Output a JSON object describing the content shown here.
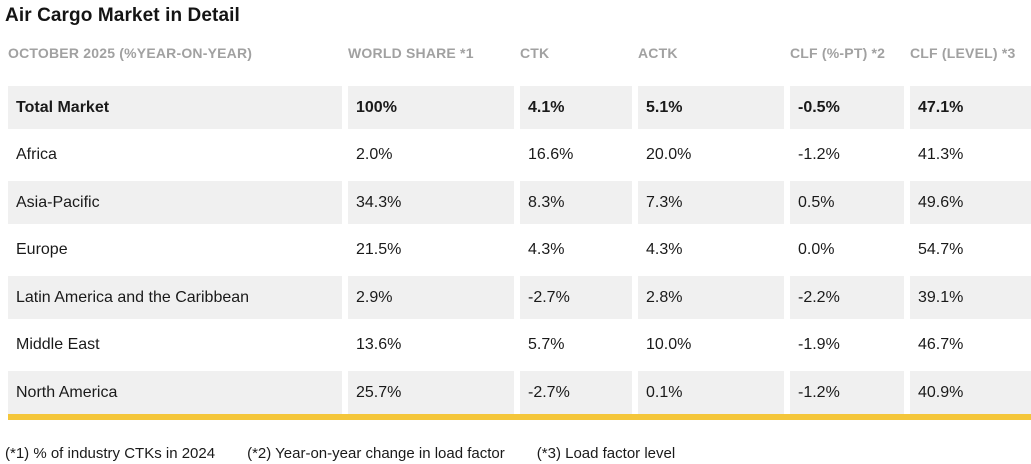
{
  "title": "Air Cargo Market in Detail",
  "table": {
    "columns": [
      "OCTOBER 2025 (%YEAR-ON-YEAR)",
      "WORLD SHARE *1",
      "CTK",
      "ACTK",
      "CLF (%-PT) *2",
      "CLF (LEVEL) *3"
    ],
    "rows": [
      {
        "cells": [
          "Total Market",
          "100%",
          "4.1%",
          "5.1%",
          "-0.5%",
          "47.1%"
        ]
      },
      {
        "cells": [
          "Africa",
          "2.0%",
          "16.6%",
          "20.0%",
          "-1.2%",
          "41.3%"
        ]
      },
      {
        "cells": [
          "Asia-Pacific",
          "34.3%",
          "8.3%",
          "7.3%",
          "0.5%",
          "49.6%"
        ]
      },
      {
        "cells": [
          "Europe",
          "21.5%",
          "4.3%",
          "4.3%",
          "0.0%",
          "54.7%"
        ]
      },
      {
        "cells": [
          "Latin America and the Caribbean",
          "2.9%",
          "-2.7%",
          "2.8%",
          "-2.2%",
          "39.1%"
        ]
      },
      {
        "cells": [
          "Middle East",
          "13.6%",
          "5.7%",
          "10.0%",
          "-1.9%",
          "46.7%"
        ]
      },
      {
        "cells": [
          "North America",
          "25.7%",
          "-2.7%",
          "0.1%",
          "-1.2%",
          "40.9%"
        ]
      }
    ]
  },
  "footnotes": [
    "(*1) % of industry CTKs in 2024",
    "(*2) Year-on-year change in load factor",
    "(*3) Load factor level"
  ],
  "colors": {
    "accent_yellow": "#f4c63a",
    "row_stripe": "#f0f0f0",
    "header_text": "#a1a1a1",
    "body_text": "#1a1a1a"
  },
  "chart_data": {
    "type": "table",
    "title": "Air Cargo Market in Detail",
    "period_label": "OCTOBER 2025 (%YEAR-ON-YEAR)",
    "columns": [
      "WORLD SHARE *1",
      "CTK",
      "ACTK",
      "CLF (%-PT) *2",
      "CLF (LEVEL) *3"
    ],
    "rows": [
      {
        "region": "Total Market",
        "world_share_pct": 100,
        "ctk_yoy_pct": 4.1,
        "actk_yoy_pct": 5.1,
        "clf_change_ppt": -0.5,
        "clf_level_pct": 47.1
      },
      {
        "region": "Africa",
        "world_share_pct": 2.0,
        "ctk_yoy_pct": 16.6,
        "actk_yoy_pct": 20.0,
        "clf_change_ppt": -1.2,
        "clf_level_pct": 41.3
      },
      {
        "region": "Asia-Pacific",
        "world_share_pct": 34.3,
        "ctk_yoy_pct": 8.3,
        "actk_yoy_pct": 7.3,
        "clf_change_ppt": 0.5,
        "clf_level_pct": 49.6
      },
      {
        "region": "Europe",
        "world_share_pct": 21.5,
        "ctk_yoy_pct": 4.3,
        "actk_yoy_pct": 4.3,
        "clf_change_ppt": 0.0,
        "clf_level_pct": 54.7
      },
      {
        "region": "Latin America and the Caribbean",
        "world_share_pct": 2.9,
        "ctk_yoy_pct": -2.7,
        "actk_yoy_pct": 2.8,
        "clf_change_ppt": -2.2,
        "clf_level_pct": 39.1
      },
      {
        "region": "Middle East",
        "world_share_pct": 13.6,
        "ctk_yoy_pct": 5.7,
        "actk_yoy_pct": 10.0,
        "clf_change_ppt": -1.9,
        "clf_level_pct": 46.7
      },
      {
        "region": "North America",
        "world_share_pct": 25.7,
        "ctk_yoy_pct": -2.7,
        "actk_yoy_pct": 0.1,
        "clf_change_ppt": -1.2,
        "clf_level_pct": 40.9
      }
    ],
    "footnotes": [
      "(*1) % of industry CTKs in 2024",
      "(*2) Year-on-year change in load factor",
      "(*3) Load factor level"
    ]
  }
}
